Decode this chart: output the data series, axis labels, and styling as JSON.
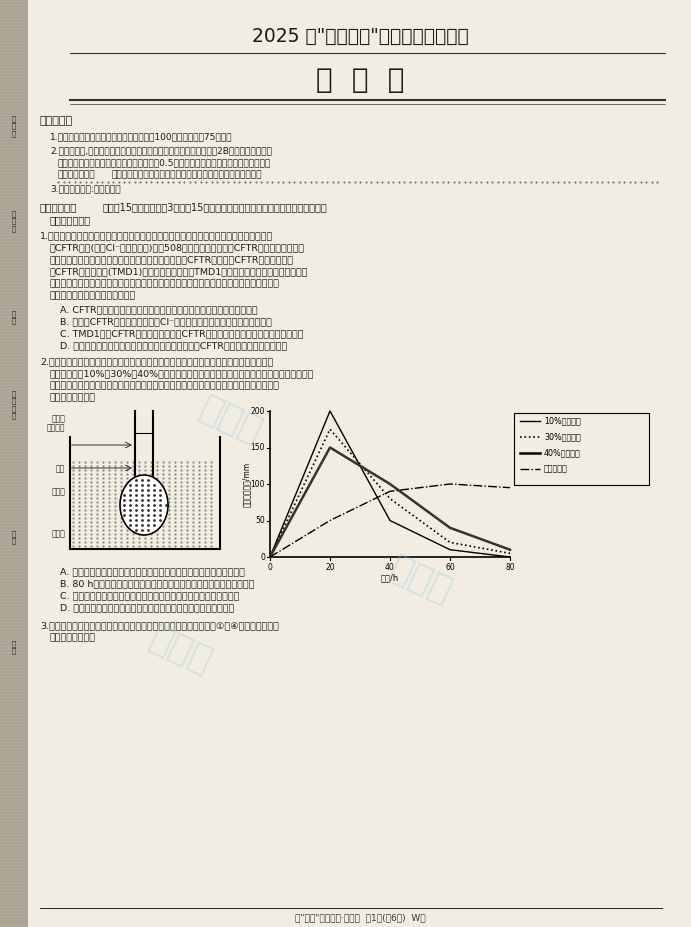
{
  "title1": "2025 届\"皖南八校\"高三第二次大联考",
  "title2": "生  物  学",
  "bg_color": "#e8e4dc",
  "paper_color": "#f2ede2",
  "text_color": "#1a1a1a",
  "watermark_color": "#a0c8e0",
  "sidebar_color": "#b0a898",
  "graph_x": [
    0,
    20,
    40,
    60,
    80
  ],
  "graph_y_10": [
    0,
    200,
    50,
    10,
    0
  ],
  "graph_y_30": [
    0,
    175,
    80,
    20,
    5
  ],
  "graph_y_40": [
    0,
    150,
    100,
    40,
    10
  ],
  "graph_y_protein": [
    0,
    50,
    90,
    100,
    95
  ],
  "graph_xlabel": "时间/h",
  "graph_ylabel": "漏斗上升高度/mm",
  "footer": "【\"皖八\"高二二联·生物学  第1页(共6页)  W】"
}
